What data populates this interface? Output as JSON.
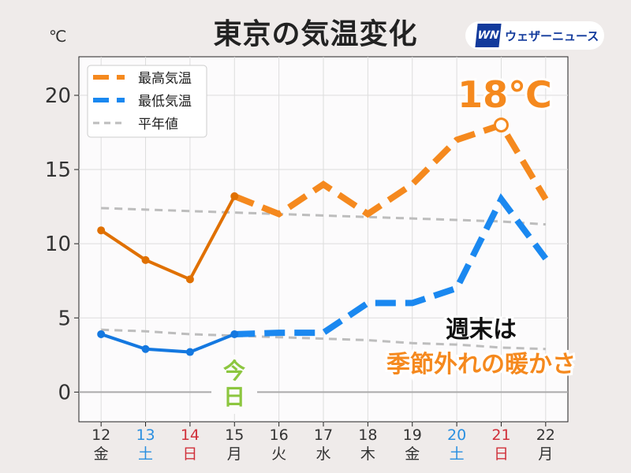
{
  "title": "東京の気温変化",
  "logo": {
    "mark": "WN",
    "text": "ウェザーニュース"
  },
  "annotations": {
    "peak_label": "18℃",
    "today_label": "今日",
    "weekend_line1": "週末は",
    "weekend_line2": "季節外れの暖かさ"
  },
  "colors": {
    "high_solid": "#e07000",
    "high_dash": "#f5891e",
    "low_solid": "#1478e0",
    "low_dash": "#1a88f0",
    "normal": "#bdbdbd",
    "saturday": "#2a8fe0",
    "sunday": "#d0303a",
    "accent": "#f5891e",
    "today": "#8cc63f"
  },
  "chart_data": {
    "type": "line",
    "title": "東京の気温変化",
    "ylabel": "℃",
    "xlabel": "",
    "x": [
      12,
      13,
      14,
      15,
      16,
      17,
      18,
      19,
      20,
      21,
      22
    ],
    "x_tick_labels": [
      "12",
      "13",
      "14",
      "15",
      "16",
      "17",
      "18",
      "19",
      "20",
      "21",
      "22"
    ],
    "weekday_labels": [
      "金",
      "土",
      "日",
      "月",
      "火",
      "水",
      "木",
      "金",
      "土",
      "日",
      "月"
    ],
    "weekday_types": [
      "w",
      "sat",
      "sun",
      "w",
      "w",
      "w",
      "w",
      "w",
      "sat",
      "sun",
      "w"
    ],
    "y_ticks": [
      0,
      5,
      10,
      15,
      20
    ],
    "y_tick_labels": [
      "0",
      "5",
      "10",
      "15",
      "20"
    ],
    "ylim": [
      -2,
      22.6
    ],
    "xlim": [
      11.5,
      22.5
    ],
    "grid": true,
    "legend_position": "top-left",
    "forecast_from_index": 3,
    "series": [
      {
        "name": "最高気温",
        "values": [
          10.9,
          8.9,
          7.6,
          13.2,
          12,
          14,
          12,
          14,
          17,
          18,
          13
        ]
      },
      {
        "name": "最低気温",
        "values": [
          3.9,
          2.9,
          2.7,
          3.9,
          4,
          4,
          6,
          6,
          7,
          13,
          9
        ]
      },
      {
        "name": "平年値",
        "values_high": [
          12.4,
          12.3,
          12.2,
          12.1,
          12.0,
          11.9,
          11.8,
          11.7,
          11.6,
          11.5,
          11.3
        ],
        "values_low": [
          4.2,
          4.1,
          3.9,
          3.8,
          3.7,
          3.6,
          3.5,
          3.3,
          3.2,
          3.0,
          2.9
        ]
      }
    ]
  }
}
